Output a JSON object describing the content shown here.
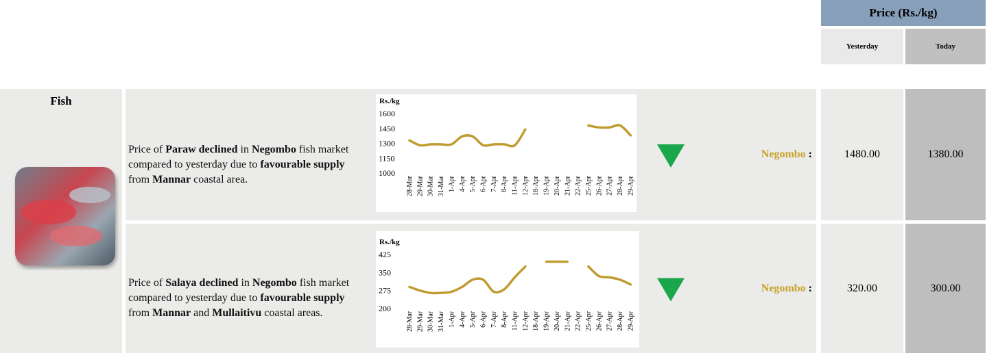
{
  "header": {
    "title": "Price (Rs./kg)",
    "yesterday": "Yesterday",
    "today": "Today"
  },
  "category": "Fish",
  "rows": [
    {
      "description": [
        {
          "text": "Price of ",
          "bold": false
        },
        {
          "text": "Paraw declined",
          "bold": true
        },
        {
          "text": " in ",
          "bold": false
        },
        {
          "text": "Negombo",
          "bold": true
        },
        {
          "text": " fish market compared to yesterday due to ",
          "bold": false
        },
        {
          "text": "favourable supply",
          "bold": true
        },
        {
          "text": " from ",
          "bold": false
        },
        {
          "text": "Mannar",
          "bold": true
        },
        {
          "text": " coastal area.",
          "bold": false
        }
      ],
      "trend": "down",
      "market": "Negombo",
      "separator": ":",
      "yesterday": "1480.00",
      "today": "1380.00"
    },
    {
      "description": [
        {
          "text": "Price of ",
          "bold": false
        },
        {
          "text": "Salaya declined",
          "bold": true
        },
        {
          "text": " in ",
          "bold": false
        },
        {
          "text": "Negombo",
          "bold": true
        },
        {
          "text": " fish market compared to yesterday due to ",
          "bold": false
        },
        {
          "text": "favourable supply",
          "bold": true
        },
        {
          "text": " from ",
          "bold": false
        },
        {
          "text": "Mannar",
          "bold": true
        },
        {
          "text": " and ",
          "bold": false
        },
        {
          "text": "Mullaitivu",
          "bold": true
        },
        {
          "text": " coastal areas.",
          "bold": false
        }
      ],
      "trend": "down",
      "market": "Negombo",
      "separator": ":",
      "yesterday": "320.00",
      "today": "300.00"
    }
  ],
  "chart_data": [
    {
      "type": "line",
      "ylabel": "Rs./kg",
      "color": "#bf9b30",
      "categories": [
        "28-Mar",
        "29-Mar",
        "30-Mar",
        "31-Mar",
        "1-Apr",
        "4-Apr",
        "5-Apr",
        "6-Apr",
        "7-Apr",
        "8-Apr",
        "11-Apr",
        "12-Apr",
        "18-Apr",
        "19-Apr",
        "20-Apr",
        "21-Apr",
        "22-Apr",
        "25-Apr",
        "26-Apr",
        "27-Apr",
        "28-Apr",
        "29-Apr"
      ],
      "values": [
        1330,
        1280,
        1290,
        1290,
        1290,
        1370,
        1370,
        1280,
        1290,
        1290,
        1280,
        1440,
        null,
        null,
        null,
        null,
        null,
        1480,
        1460,
        1460,
        1480,
        1380
      ],
      "ylim": [
        1000,
        1600
      ],
      "yticks": [
        1000,
        1150,
        1300,
        1450,
        1600
      ]
    },
    {
      "type": "line",
      "ylabel": "Rs./kg",
      "color": "#bf9b30",
      "categories": [
        "28-Mar",
        "29-Mar",
        "30-Mar",
        "31-Mar",
        "1-Apr",
        "4-Apr",
        "5-Apr",
        "6-Apr",
        "7-Apr",
        "8-Apr",
        "11-Apr",
        "12-Apr",
        "18-Apr",
        "19-Apr",
        "20-Apr",
        "21-Apr",
        "22-Apr",
        "25-Apr",
        "26-Apr",
        "27-Apr",
        "28-Apr",
        "29-Apr"
      ],
      "values": [
        290,
        275,
        265,
        265,
        270,
        290,
        320,
        320,
        270,
        280,
        330,
        375,
        null,
        395,
        395,
        395,
        null,
        375,
        335,
        330,
        320,
        300
      ],
      "ylim": [
        200,
        425
      ],
      "yticks": [
        200,
        275,
        350,
        425
      ]
    }
  ]
}
